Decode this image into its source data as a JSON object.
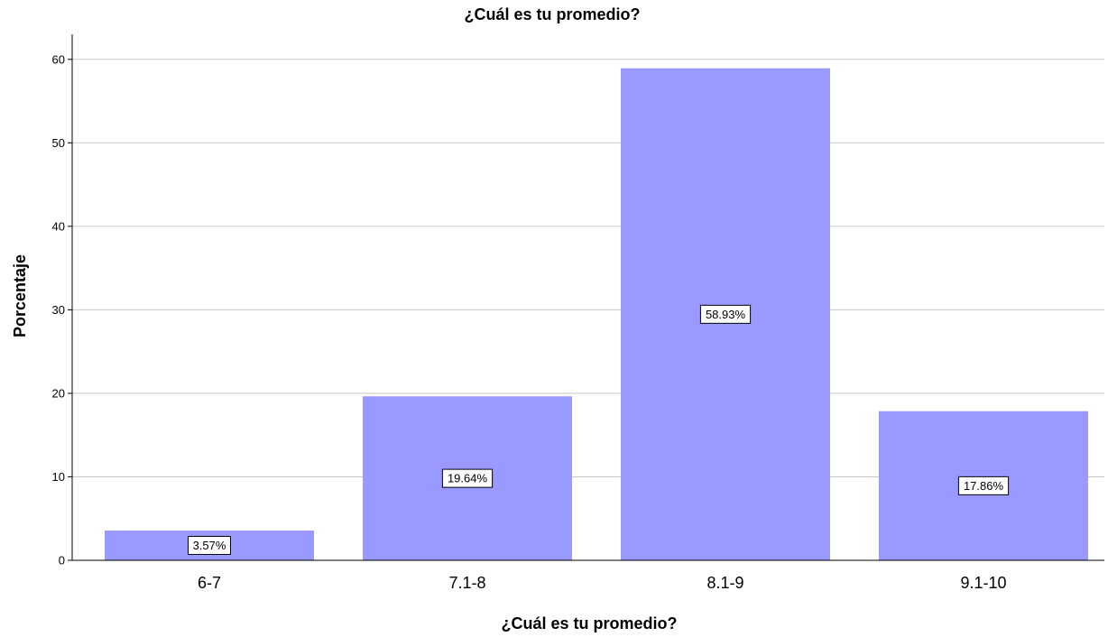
{
  "chart_data": {
    "type": "bar",
    "title": "¿Cuál es tu promedio?",
    "xlabel": "¿Cuál es tu promedio?",
    "ylabel": "Porcentaje",
    "categories": [
      "6-7",
      "7.1-8",
      "8.1-9",
      "9.1-10"
    ],
    "values": [
      3.57,
      19.64,
      58.93,
      17.86
    ],
    "data_labels": [
      "3.57%",
      "19.64%",
      "58.93%",
      "17.86%"
    ],
    "ylim": [
      0,
      63
    ],
    "yticks": [
      0,
      10,
      20,
      30,
      40,
      50,
      60
    ],
    "grid": true,
    "legend": "none",
    "colors": {
      "bar": "#9999ff",
      "grid": "#c8c8c8",
      "axis": "#000000",
      "label_border": "#000000",
      "label_bg": "#ffffff"
    }
  }
}
